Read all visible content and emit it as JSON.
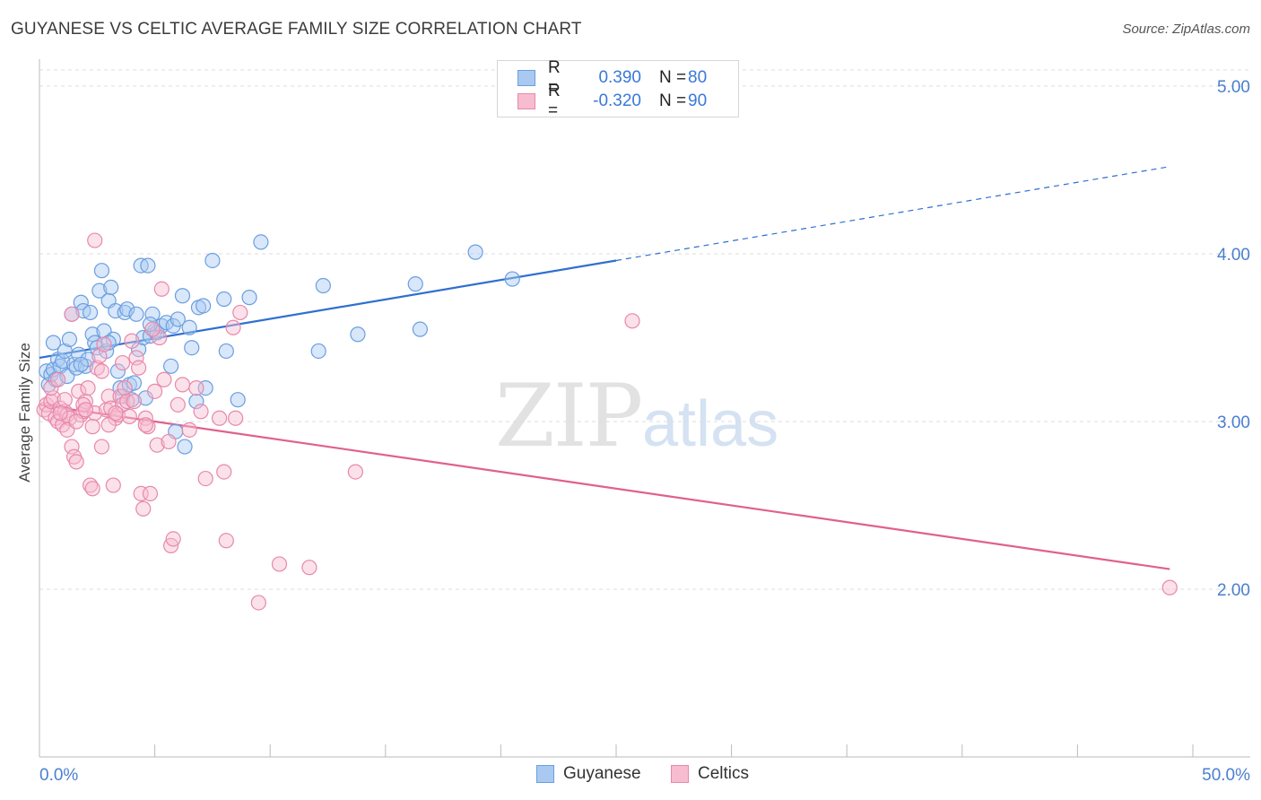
{
  "title": "GUYANESE VS CELTIC AVERAGE FAMILY SIZE CORRELATION CHART",
  "source": "Source: ZipAtlas.com",
  "watermark": {
    "zip": "ZIP",
    "atlas": "atlas"
  },
  "legend": {
    "rows": [
      {
        "r_label": "R =",
        "r_value": "0.390",
        "n_label": "N =",
        "n_value": "80",
        "color": "#a9c9f1",
        "border": "#6a9ee0"
      },
      {
        "r_label": "R =",
        "r_value": "-0.320",
        "n_label": "N =",
        "n_value": "90",
        "color": "#f7bcd0",
        "border": "#e888aa"
      }
    ]
  },
  "bottom_legend": [
    {
      "label": "Guyanese",
      "color": "#a9c9f1",
      "border": "#6a9ee0"
    },
    {
      "label": "Celtics",
      "color": "#f7bcd0",
      "border": "#e888aa"
    }
  ],
  "chart_data": {
    "type": "scatter",
    "title": "GUYANESE VS CELTIC AVERAGE FAMILY SIZE CORRELATION CHART",
    "xlabel": "",
    "ylabel": "Average Family Size",
    "xlim": [
      0,
      50
    ],
    "ylim": [
      1.0,
      5.1
    ],
    "x_tick_labels": [
      "0.0%",
      "50.0%"
    ],
    "y_ticks": [
      2.0,
      3.0,
      4.0,
      5.0
    ],
    "y_tick_labels": [
      "2.00",
      "3.00",
      "4.00",
      "5.00"
    ],
    "grid": true,
    "series": [
      {
        "name": "Guyanese",
        "color": "#6a9ee0",
        "fill": "#a9c9f1",
        "trend": {
          "x0": 0,
          "y0": 3.38,
          "x1": 25,
          "y1": 3.96,
          "x_dash_end": 49,
          "y_dash_end": 4.52,
          "color": "#2f6fd0"
        },
        "points": [
          [
            0.3,
            3.3
          ],
          [
            0.4,
            3.22
          ],
          [
            0.5,
            3.28
          ],
          [
            0.6,
            3.31
          ],
          [
            0.7,
            3.25
          ],
          [
            0.8,
            3.37
          ],
          [
            0.9,
            3.33
          ],
          [
            1.0,
            3.36
          ],
          [
            1.1,
            3.42
          ],
          [
            1.2,
            3.27
          ],
          [
            1.3,
            3.49
          ],
          [
            1.4,
            3.64
          ],
          [
            1.5,
            3.34
          ],
          [
            1.6,
            3.32
          ],
          [
            1.7,
            3.4
          ],
          [
            1.8,
            3.71
          ],
          [
            1.9,
            3.66
          ],
          [
            2.0,
            3.33
          ],
          [
            2.1,
            3.37
          ],
          [
            2.2,
            3.65
          ],
          [
            2.3,
            3.52
          ],
          [
            2.4,
            3.47
          ],
          [
            2.5,
            3.44
          ],
          [
            2.6,
            3.78
          ],
          [
            2.7,
            3.9
          ],
          [
            2.8,
            3.54
          ],
          [
            2.9,
            3.42
          ],
          [
            3.0,
            3.72
          ],
          [
            3.1,
            3.8
          ],
          [
            3.2,
            3.49
          ],
          [
            3.3,
            3.66
          ],
          [
            3.4,
            3.3
          ],
          [
            3.5,
            3.2
          ],
          [
            3.6,
            3.15
          ],
          [
            3.7,
            3.65
          ],
          [
            3.8,
            3.67
          ],
          [
            3.9,
            3.22
          ],
          [
            4.0,
            3.13
          ],
          [
            4.1,
            3.23
          ],
          [
            4.2,
            3.64
          ],
          [
            4.3,
            3.43
          ],
          [
            4.4,
            3.93
          ],
          [
            4.5,
            3.5
          ],
          [
            4.6,
            3.14
          ],
          [
            4.7,
            3.93
          ],
          [
            4.8,
            3.51
          ],
          [
            4.9,
            3.64
          ],
          [
            5.0,
            3.54
          ],
          [
            5.1,
            3.53
          ],
          [
            5.3,
            3.57
          ],
          [
            5.5,
            3.59
          ],
          [
            5.7,
            3.33
          ],
          [
            5.8,
            3.57
          ],
          [
            5.9,
            2.94
          ],
          [
            6.0,
            3.61
          ],
          [
            6.2,
            3.75
          ],
          [
            6.3,
            2.85
          ],
          [
            6.5,
            3.56
          ],
          [
            6.6,
            3.44
          ],
          [
            6.8,
            3.12
          ],
          [
            6.9,
            3.68
          ],
          [
            7.1,
            3.69
          ],
          [
            7.2,
            3.2
          ],
          [
            7.5,
            3.96
          ],
          [
            8.0,
            3.73
          ],
          [
            8.6,
            3.13
          ],
          [
            8.1,
            3.42
          ],
          [
            9.6,
            4.07
          ],
          [
            9.1,
            3.74
          ],
          [
            12.1,
            3.42
          ],
          [
            12.3,
            3.81
          ],
          [
            13.8,
            3.52
          ],
          [
            16.3,
            3.82
          ],
          [
            16.5,
            3.55
          ],
          [
            18.9,
            4.01
          ],
          [
            20.5,
            3.85
          ],
          [
            0.6,
            3.47
          ],
          [
            1.8,
            3.34
          ],
          [
            3.0,
            3.47
          ],
          [
            4.8,
            3.58
          ]
        ]
      },
      {
        "name": "Celtics",
        "color": "#e888aa",
        "fill": "#f7bcd0",
        "trend": {
          "x0": 0,
          "y0": 3.1,
          "x1": 49,
          "y1": 2.12,
          "color": "#e0608e"
        },
        "points": [
          [
            0.2,
            3.07
          ],
          [
            0.3,
            3.1
          ],
          [
            0.4,
            3.05
          ],
          [
            0.5,
            3.12
          ],
          [
            0.6,
            3.14
          ],
          [
            0.7,
            3.02
          ],
          [
            0.8,
            3.0
          ],
          [
            0.9,
            3.08
          ],
          [
            1.0,
            2.98
          ],
          [
            1.1,
            3.06
          ],
          [
            1.2,
            3.04
          ],
          [
            1.3,
            3.02
          ],
          [
            1.4,
            2.85
          ],
          [
            1.5,
            2.79
          ],
          [
            1.6,
            2.76
          ],
          [
            1.7,
            3.18
          ],
          [
            1.8,
            3.04
          ],
          [
            1.9,
            3.06
          ],
          [
            2.0,
            3.12
          ],
          [
            2.1,
            3.2
          ],
          [
            2.2,
            2.62
          ],
          [
            2.3,
            2.6
          ],
          [
            2.4,
            3.05
          ],
          [
            2.5,
            3.32
          ],
          [
            2.6,
            3.39
          ],
          [
            2.7,
            2.85
          ],
          [
            2.8,
            3.46
          ],
          [
            2.9,
            3.07
          ],
          [
            3.0,
            3.15
          ],
          [
            3.1,
            3.08
          ],
          [
            3.2,
            2.62
          ],
          [
            3.3,
            3.02
          ],
          [
            3.4,
            3.04
          ],
          [
            3.5,
            3.15
          ],
          [
            3.6,
            3.1
          ],
          [
            3.7,
            3.2
          ],
          [
            3.8,
            3.12
          ],
          [
            3.9,
            3.03
          ],
          [
            4.0,
            3.48
          ],
          [
            4.2,
            3.38
          ],
          [
            4.3,
            3.32
          ],
          [
            4.4,
            2.57
          ],
          [
            4.5,
            2.48
          ],
          [
            4.6,
            3.02
          ],
          [
            4.7,
            2.97
          ],
          [
            4.8,
            2.57
          ],
          [
            5.0,
            3.18
          ],
          [
            5.1,
            2.86
          ],
          [
            5.3,
            3.79
          ],
          [
            5.4,
            3.25
          ],
          [
            5.6,
            2.88
          ],
          [
            5.7,
            2.26
          ],
          [
            5.8,
            2.3
          ],
          [
            6.0,
            3.1
          ],
          [
            6.2,
            3.22
          ],
          [
            6.5,
            2.95
          ],
          [
            6.8,
            3.2
          ],
          [
            7.0,
            3.06
          ],
          [
            7.2,
            2.66
          ],
          [
            7.8,
            3.02
          ],
          [
            8.0,
            2.7
          ],
          [
            8.1,
            2.29
          ],
          [
            8.4,
            3.56
          ],
          [
            8.5,
            3.02
          ],
          [
            8.7,
            3.65
          ],
          [
            9.5,
            1.92
          ],
          [
            10.4,
            2.15
          ],
          [
            11.7,
            2.13
          ],
          [
            13.7,
            2.7
          ],
          [
            25.7,
            3.6
          ],
          [
            49.0,
            2.01
          ],
          [
            0.5,
            3.2
          ],
          [
            0.8,
            3.25
          ],
          [
            1.2,
            2.95
          ],
          [
            1.6,
            3.0
          ],
          [
            1.9,
            3.1
          ],
          [
            2.3,
            2.97
          ],
          [
            2.7,
            3.3
          ],
          [
            3.0,
            2.98
          ],
          [
            3.3,
            3.05
          ],
          [
            3.6,
            3.35
          ],
          [
            4.1,
            3.12
          ],
          [
            4.6,
            2.98
          ],
          [
            5.2,
            3.5
          ],
          [
            2.4,
            4.08
          ],
          [
            1.4,
            3.64
          ],
          [
            0.9,
            3.05
          ],
          [
            1.1,
            3.13
          ],
          [
            2.0,
            3.07
          ],
          [
            4.9,
            3.55
          ]
        ]
      }
    ]
  }
}
